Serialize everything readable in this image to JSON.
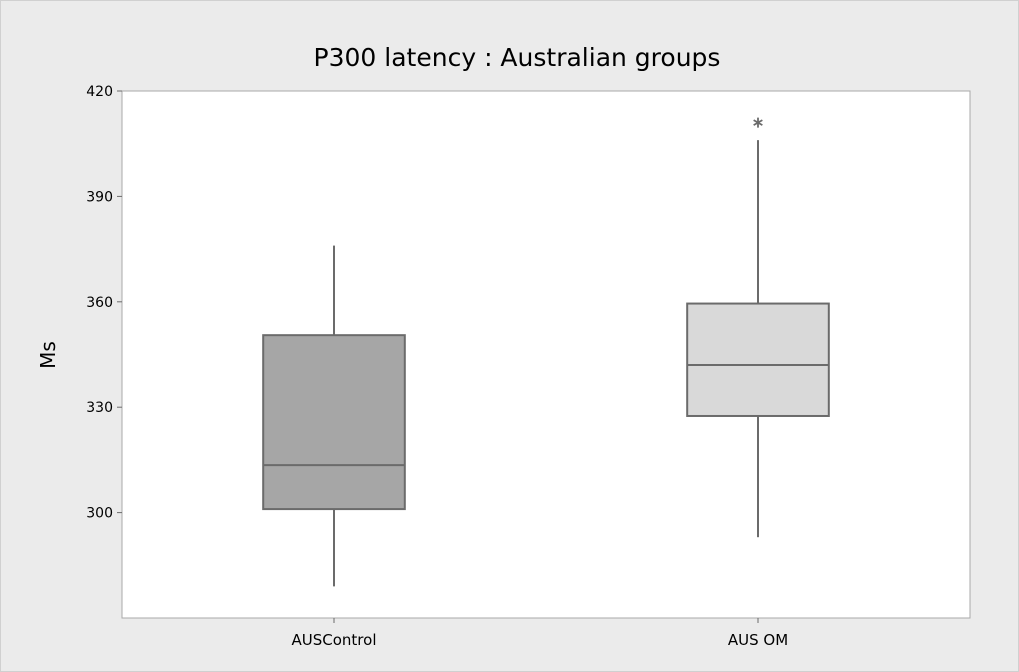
{
  "chart_data": {
    "type": "box",
    "title": "P300 latency : Australian groups",
    "xlabel": "",
    "ylabel": "Ms",
    "ylim": [
      270,
      420
    ],
    "yticks": [
      300,
      330,
      360,
      390,
      420
    ],
    "grid": false,
    "legend": "none",
    "categories": [
      "AUSControl",
      "AUS OM"
    ],
    "boxes": [
      {
        "category": "AUSControl",
        "whisker_low": 279,
        "q1": 301,
        "median": 313.5,
        "q3": 350.5,
        "whisker_high": 376,
        "outliers": [],
        "fill": "#a6a6a6"
      },
      {
        "category": "AUS OM",
        "whisker_low": 293,
        "q1": 327.5,
        "median": 342,
        "q3": 359.5,
        "whisker_high": 406,
        "outliers": [
          411
        ],
        "fill": "#d9d9d9"
      }
    ],
    "colors": {
      "background": "#ebebeb",
      "plot_area": "#ffffff",
      "box_edge": "#6b6b6b",
      "outlier": "#6b6b6b"
    }
  }
}
